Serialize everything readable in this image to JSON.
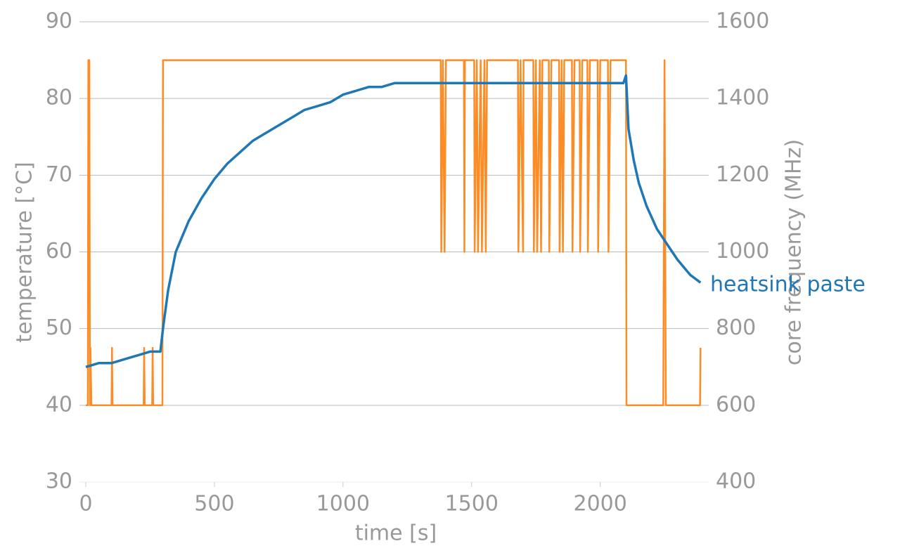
{
  "chart_data": {
    "type": "line",
    "xlabel": "time [s]",
    "ylabel": "temperature [°C]",
    "y2label": "core frequency (MHz)",
    "annotation": "heatsink paste",
    "xlim": [
      0,
      2400
    ],
    "xticks": [
      0,
      500,
      1000,
      1500,
      2000
    ],
    "ylim": [
      30,
      90
    ],
    "yticks": [
      30,
      40,
      50,
      60,
      70,
      80,
      90
    ],
    "y2lim": [
      400,
      1600
    ],
    "y2ticks": [
      400,
      600,
      800,
      1000,
      1200,
      1400,
      1600
    ],
    "grid": true,
    "series": [
      {
        "name": "temperature",
        "color": "#1f77b4",
        "x": [
          0,
          50,
          100,
          150,
          200,
          250,
          290,
          300,
          320,
          350,
          400,
          450,
          500,
          550,
          600,
          650,
          700,
          750,
          800,
          850,
          900,
          950,
          1000,
          1050,
          1100,
          1150,
          1200,
          1300,
          1400,
          1500,
          1600,
          1700,
          1800,
          1900,
          2000,
          2090,
          2100,
          2110,
          2130,
          2150,
          2180,
          2220,
          2260,
          2300,
          2350,
          2390
        ],
        "values": [
          45,
          45.5,
          45.5,
          46,
          46.5,
          47,
          47,
          50,
          55,
          60,
          64,
          67,
          69.5,
          71.5,
          73,
          74.5,
          75.5,
          76.5,
          77.5,
          78.5,
          79,
          79.5,
          80.5,
          81,
          81.5,
          81.5,
          82,
          82,
          82,
          82,
          82,
          82,
          82,
          82,
          82,
          82,
          83,
          76,
          72,
          69,
          66,
          63,
          61,
          59,
          57,
          56
        ]
      },
      {
        "name": "core frequency",
        "color": "#fb8c26",
        "axis": "y2",
        "x": [
          0,
          8,
          10,
          14,
          16,
          18,
          22,
          100,
          102,
          104,
          225,
          227,
          229,
          258,
          260,
          262,
          298,
          300,
          1380,
          1382,
          1388,
          1395,
          1400,
          1470,
          1472,
          1474,
          1510,
          1512,
          1520,
          1525,
          1535,
          1540,
          1550,
          1555,
          1560,
          1680,
          1682,
          1690,
          1700,
          1702,
          1740,
          1742,
          1750,
          1755,
          1765,
          1770,
          1775,
          1800,
          1802,
          1810,
          1840,
          1842,
          1850,
          1855,
          1860,
          1890,
          1892,
          1900,
          1920,
          1922,
          1930,
          1950,
          1952,
          1960,
          1990,
          1992,
          2000,
          2030,
          2032,
          2040,
          2100,
          2102,
          2245,
          2250,
          2255,
          2388,
          2390
        ],
        "values": [
          600,
          600,
          1500,
          1500,
          600,
          750,
          600,
          600,
          750,
          600,
          600,
          750,
          600,
          600,
          750,
          600,
          600,
          1500,
          1500,
          1000,
          1500,
          1000,
          1500,
          1500,
          1000,
          1500,
          1500,
          1000,
          1500,
          1000,
          1500,
          1000,
          1500,
          1000,
          1500,
          1500,
          1000,
          1500,
          1000,
          1500,
          1500,
          1000,
          1500,
          1000,
          1500,
          1000,
          1500,
          1500,
          1000,
          1500,
          1500,
          1000,
          1500,
          1000,
          1500,
          1500,
          1000,
          1500,
          1500,
          1000,
          1500,
          1500,
          1000,
          1500,
          1500,
          1000,
          1500,
          1500,
          1000,
          1500,
          1500,
          600,
          600,
          1500,
          600,
          600,
          750
        ]
      }
    ]
  }
}
